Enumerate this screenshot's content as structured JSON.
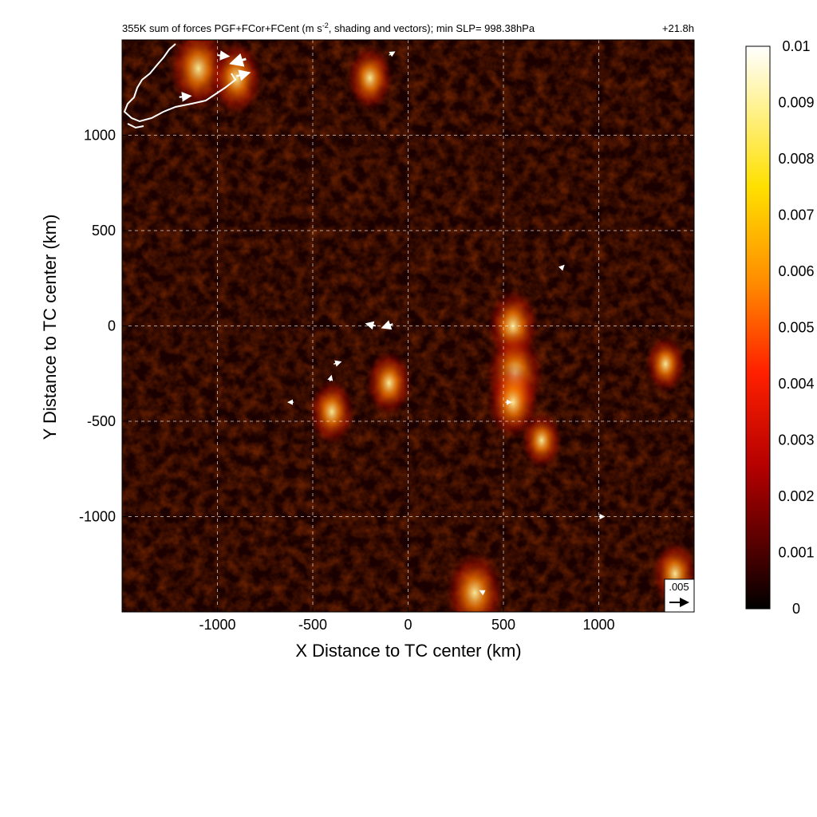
{
  "chart_data": {
    "type": "heatmap",
    "title": "355K sum of forces PGF+FCor+FCent (m s⁻², shading and vectors); min SLP= 998.38hPa",
    "title_left": "355K sum of forces PGF+FCor+FCent (m s",
    "title_sup": "-2",
    "title_right": ", shading and vectors); min SLP= 998.38hPa",
    "time_label": "+21.8h",
    "xlabel": "X Distance to TC center (km)",
    "ylabel": "Y Distance to TC center (km)",
    "xlim": [
      -1500,
      1500
    ],
    "ylim": [
      -1500,
      1500
    ],
    "x_ticks": [
      -1000,
      -500,
      0,
      500,
      1000
    ],
    "y_ticks": [
      -1000,
      -500,
      0,
      500,
      1000
    ],
    "grid": true,
    "colorbar": {
      "range": [
        0,
        0.01
      ],
      "ticks": [
        "0",
        "0.001",
        "0.002",
        "0.003",
        "0.004",
        "0.005",
        "0.006",
        "0.007",
        "0.008",
        "0.009",
        "0.01"
      ],
      "colors": [
        "#000000",
        "#5a0000",
        "#b30000",
        "#ff2000",
        "#ff8c00",
        "#ffe000",
        "#ffffff"
      ]
    },
    "reference_vector": {
      "label": ".005",
      "magnitude": 0.005
    },
    "hotspots": [
      {
        "x": -1100,
        "y": 1350,
        "value": 0.006
      },
      {
        "x": -900,
        "y": 1300,
        "value": 0.005
      },
      {
        "x": -200,
        "y": 1300,
        "value": 0.004
      },
      {
        "x": 550,
        "y": 0,
        "value": 0.005
      },
      {
        "x": 560,
        "y": -250,
        "value": 0.006
      },
      {
        "x": 550,
        "y": -400,
        "value": 0.005
      },
      {
        "x": -100,
        "y": -300,
        "value": 0.004
      },
      {
        "x": -400,
        "y": -450,
        "value": 0.004
      },
      {
        "x": 700,
        "y": -600,
        "value": 0.003
      },
      {
        "x": 350,
        "y": -1400,
        "value": 0.006
      },
      {
        "x": 1400,
        "y": -1300,
        "value": 0.004
      },
      {
        "x": 1350,
        "y": -200,
        "value": 0.003
      }
    ],
    "vectors": [
      {
        "x": -1000,
        "y": 1420,
        "u": 0.003,
        "v": -0.0003
      },
      {
        "x": -850,
        "y": 1400,
        "u": -0.004,
        "v": -0.0012
      },
      {
        "x": -900,
        "y": 1310,
        "u": 0.0034,
        "v": 0.0009
      },
      {
        "x": -1200,
        "y": 1200,
        "u": 0.003,
        "v": 0.0003
      },
      {
        "x": -100,
        "y": 1420,
        "u": 0.0015,
        "v": 0.0009
      },
      {
        "x": -170,
        "y": 0,
        "u": -0.0025,
        "v": 0.0006
      },
      {
        "x": -80,
        "y": 10,
        "u": -0.0028,
        "v": -0.001
      },
      {
        "x": -390,
        "y": -200,
        "u": 0.0019,
        "v": 0.0006
      },
      {
        "x": -410,
        "y": -290,
        "u": 0.0004,
        "v": 0.0015
      },
      {
        "x": -600,
        "y": -400,
        "u": -0.0015,
        "v": 0.0
      },
      {
        "x": 510,
        "y": -400,
        "u": 0.0016,
        "v": 0.0
      },
      {
        "x": 1000,
        "y": -1000,
        "u": 0.0015,
        "v": 0.0
      },
      {
        "x": 400,
        "y": -1400,
        "u": -0.0012,
        "v": 0.0006
      },
      {
        "x": 800,
        "y": 300,
        "u": 0.0009,
        "v": 0.0009
      }
    ]
  }
}
